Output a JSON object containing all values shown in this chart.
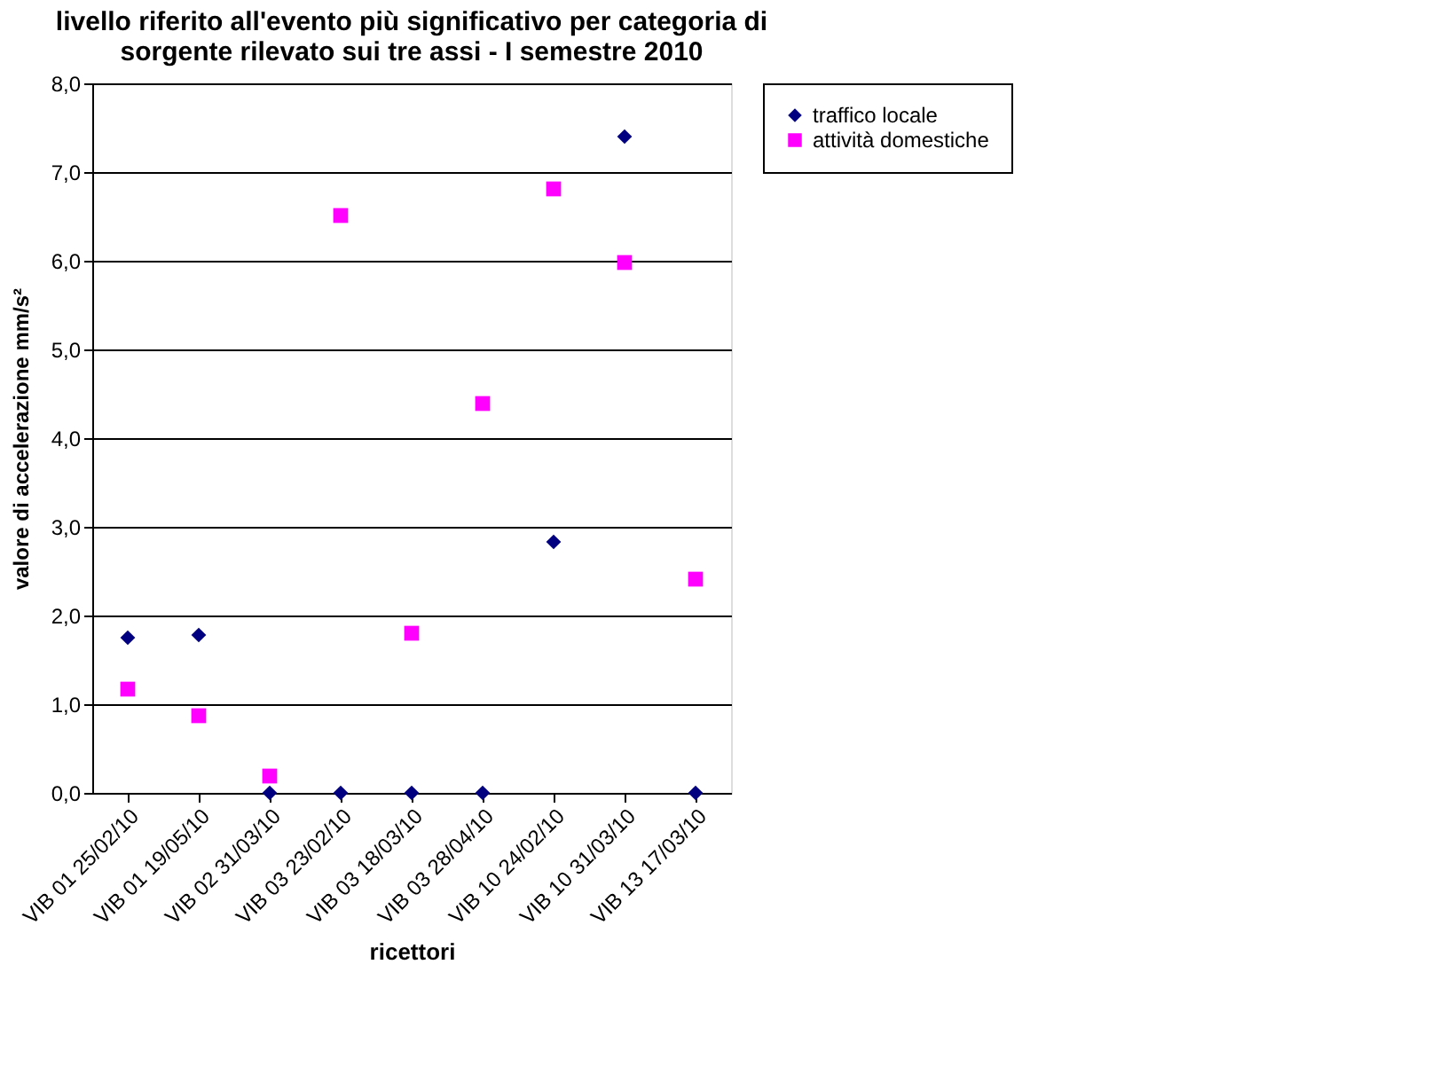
{
  "chart_data": {
    "type": "scatter",
    "title": "livello riferito all'evento più significativo per categoria di sorgente rilevato sui tre assi - I semestre 2010",
    "xlabel": "ricettori",
    "ylabel": "valore di accelerazione mm/s²",
    "categories": [
      "VIB 01 25/02/10",
      "VIB 01 19/05/10",
      "VIB 02 31/03/10",
      "VIB 03 23/02/10",
      "VIB 03 18/03/10",
      "VIB 03 28/04/10",
      "VIB 10 24/02/10",
      "VIB 10 31/03/10",
      "VIB 13 17/03/10"
    ],
    "series": [
      {
        "name": "traffico locale",
        "color": "#000080",
        "marker": "diamond",
        "values": [
          1.75,
          1.78,
          0,
          0,
          0,
          0,
          2.83,
          7.4,
          0
        ]
      },
      {
        "name": "attività domestiche",
        "color": "#ff00ff",
        "marker": "square",
        "values": [
          1.17,
          0.87,
          0.19,
          6.51,
          1.8,
          4.39,
          6.81,
          5.98,
          2.41
        ]
      }
    ],
    "ylim": [
      0,
      8
    ],
    "yticks": [
      {
        "value": 0,
        "label": "0,0"
      },
      {
        "value": 1,
        "label": "1,0"
      },
      {
        "value": 2,
        "label": "2,0"
      },
      {
        "value": 3,
        "label": "3,0"
      },
      {
        "value": 4,
        "label": "4,0"
      },
      {
        "value": 5,
        "label": "5,0"
      },
      {
        "value": 6,
        "label": "6,0"
      },
      {
        "value": 7,
        "label": "7,0"
      },
      {
        "value": 8,
        "label": "8,0"
      }
    ],
    "grid": "y",
    "legend": "right"
  }
}
